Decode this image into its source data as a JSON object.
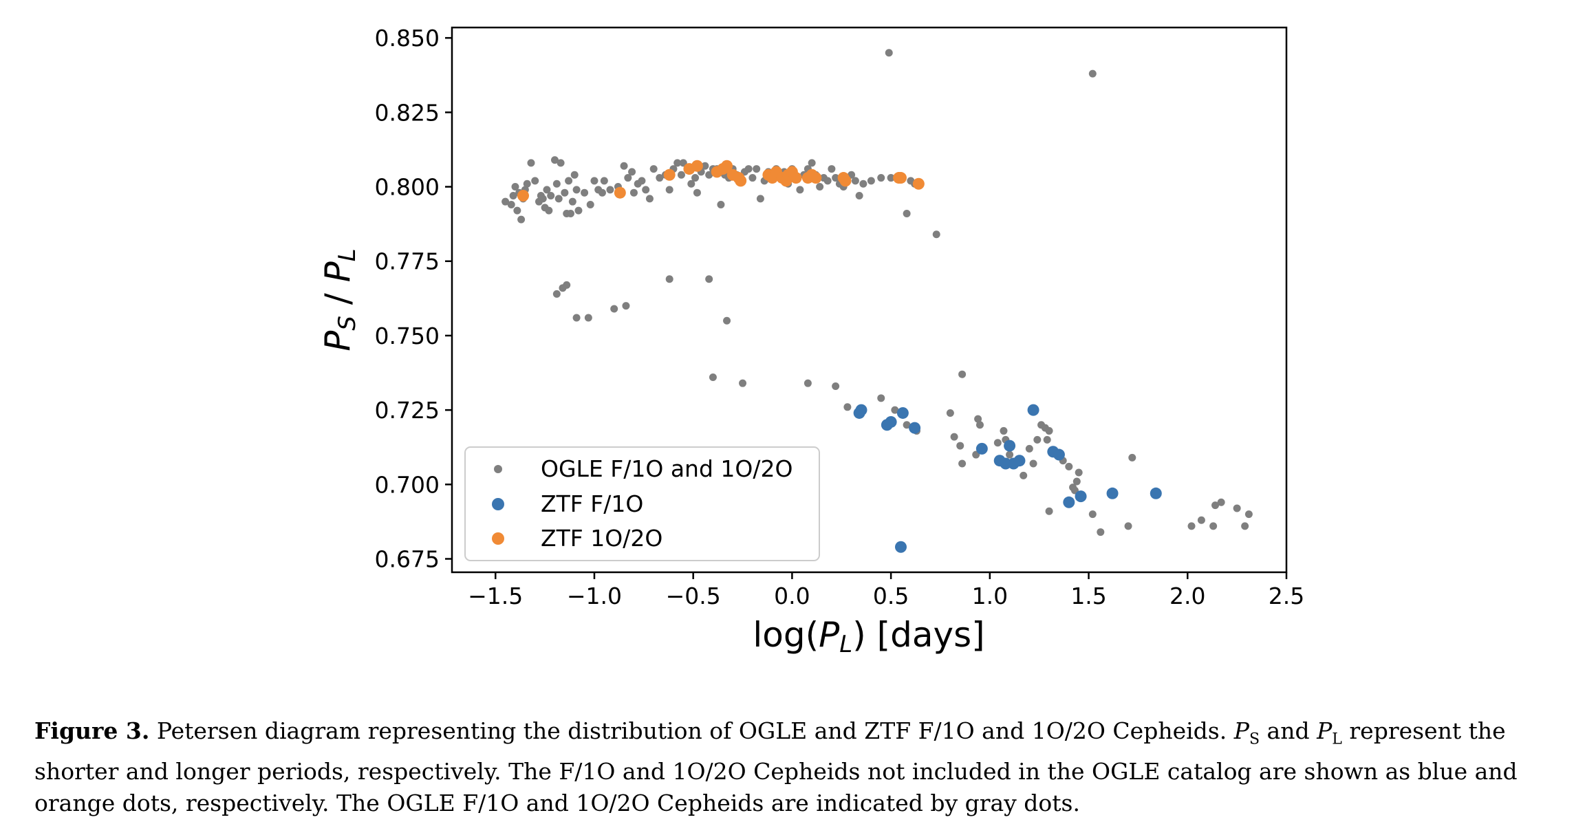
{
  "caption": {
    "label": "Figure 3.",
    "part1": "Petersen diagram representing the distribution of OGLE and ZTF F/1O and 1O/2O Cepheids.",
    "ps_symbol": "P",
    "ps_sub": "S",
    "and": "and",
    "pl_symbol": "P",
    "pl_sub": "L",
    "part2": "represent the shorter and longer periods, respectively. The F/1O and 1O/2O Cepheids not included in the OGLE catalog are shown as blue and orange dots, respectively. The OGLE F/1O and 1O/2O Cepheids are indicated by gray dots."
  },
  "chart_data": {
    "type": "scatter",
    "xlim": [
      -1.72,
      2.5
    ],
    "ylim": [
      0.6705,
      0.8535
    ],
    "xticks": [
      -1.5,
      -1.0,
      -0.5,
      0.0,
      0.5,
      1.0,
      1.5,
      2.0,
      2.5
    ],
    "xtick_labels": [
      "−1.5",
      "−1.0",
      "−0.5",
      "0.0",
      "0.5",
      "1.0",
      "1.5",
      "2.0",
      "2.5"
    ],
    "yticks": [
      0.675,
      0.7,
      0.725,
      0.75,
      0.775,
      0.8,
      0.825,
      0.85
    ],
    "ytick_labels": [
      "0.675",
      "0.700",
      "0.725",
      "0.750",
      "0.775",
      "0.800",
      "0.825",
      "0.850"
    ],
    "xlabel": {
      "pre": "log(",
      "sym": "P",
      "sub": "L",
      "post": ") [days]"
    },
    "ylabel": {
      "sym1": "P",
      "sub1": "S",
      "mid": " / ",
      "sym2": "P",
      "sub2": "L"
    },
    "legend_position": "lower left",
    "grid": false,
    "series": [
      {
        "name": "OGLE F/1O and 1O/2O",
        "color": "#7f7f7f",
        "marker": "small",
        "points": [
          [
            -1.45,
            0.795
          ],
          [
            -1.42,
            0.794
          ],
          [
            -1.41,
            0.797
          ],
          [
            -1.4,
            0.8
          ],
          [
            -1.39,
            0.792
          ],
          [
            -1.38,
            0.798
          ],
          [
            -1.37,
            0.789
          ],
          [
            -1.36,
            0.796
          ],
          [
            -1.35,
            0.799
          ],
          [
            -1.34,
            0.801
          ],
          [
            -1.32,
            0.808
          ],
          [
            -1.3,
            0.802
          ],
          [
            -1.28,
            0.795
          ],
          [
            -1.27,
            0.797
          ],
          [
            -1.26,
            0.796
          ],
          [
            -1.25,
            0.793
          ],
          [
            -1.24,
            0.799
          ],
          [
            -1.23,
            0.792
          ],
          [
            -1.22,
            0.797
          ],
          [
            -1.2,
            0.809
          ],
          [
            -1.19,
            0.801
          ],
          [
            -1.18,
            0.796
          ],
          [
            -1.17,
            0.808
          ],
          [
            -1.15,
            0.798
          ],
          [
            -1.14,
            0.791
          ],
          [
            -1.13,
            0.802
          ],
          [
            -1.12,
            0.791
          ],
          [
            -1.11,
            0.795
          ],
          [
            -1.1,
            0.804
          ],
          [
            -1.09,
            0.799
          ],
          [
            -1.08,
            0.792
          ],
          [
            -1.05,
            0.798
          ],
          [
            -1.02,
            0.794
          ],
          [
            -1.0,
            0.802
          ],
          [
            -0.98,
            0.799
          ],
          [
            -0.96,
            0.798
          ],
          [
            -0.95,
            0.802
          ],
          [
            -0.92,
            0.799
          ],
          [
            -0.88,
            0.8
          ],
          [
            -0.85,
            0.807
          ],
          [
            -0.83,
            0.803
          ],
          [
            -0.81,
            0.805
          ],
          [
            -0.8,
            0.798
          ],
          [
            -0.78,
            0.801
          ],
          [
            -0.76,
            0.802
          ],
          [
            -0.74,
            0.799
          ],
          [
            -0.72,
            0.796
          ],
          [
            -0.7,
            0.806
          ],
          [
            -0.67,
            0.803
          ],
          [
            -0.64,
            0.804
          ],
          [
            -0.62,
            0.799
          ],
          [
            -0.6,
            0.806
          ],
          [
            -0.58,
            0.808
          ],
          [
            -0.56,
            0.804
          ],
          [
            -0.55,
            0.808
          ],
          [
            -0.53,
            0.806
          ],
          [
            -0.51,
            0.801
          ],
          [
            -0.49,
            0.803
          ],
          [
            -0.48,
            0.798
          ],
          [
            -0.46,
            0.805
          ],
          [
            -0.44,
            0.807
          ],
          [
            -0.42,
            0.804
          ],
          [
            -0.4,
            0.806
          ],
          [
            -0.38,
            0.806
          ],
          [
            -0.36,
            0.794
          ],
          [
            -0.34,
            0.804
          ],
          [
            -0.32,
            0.803
          ],
          [
            -0.3,
            0.806
          ],
          [
            -0.28,
            0.804
          ],
          [
            -0.26,
            0.803
          ],
          [
            -0.24,
            0.805
          ],
          [
            -0.22,
            0.806
          ],
          [
            -0.2,
            0.803
          ],
          [
            -0.18,
            0.806
          ],
          [
            -0.16,
            0.796
          ],
          [
            -0.14,
            0.802
          ],
          [
            -0.12,
            0.805
          ],
          [
            -0.1,
            0.804
          ],
          [
            -0.08,
            0.806
          ],
          [
            -0.06,
            0.803
          ],
          [
            -0.04,
            0.805
          ],
          [
            -0.02,
            0.801
          ],
          [
            0.0,
            0.806
          ],
          [
            0.02,
            0.803
          ],
          [
            0.04,
            0.799
          ],
          [
            0.06,
            0.804
          ],
          [
            0.08,
            0.806
          ],
          [
            0.1,
            0.808
          ],
          [
            0.12,
            0.804
          ],
          [
            0.14,
            0.8
          ],
          [
            0.16,
            0.803
          ],
          [
            0.18,
            0.802
          ],
          [
            0.2,
            0.806
          ],
          [
            0.22,
            0.803
          ],
          [
            0.24,
            0.801
          ],
          [
            0.26,
            0.8
          ],
          [
            0.28,
            0.803
          ],
          [
            0.3,
            0.804
          ],
          [
            0.32,
            0.802
          ],
          [
            0.34,
            0.797
          ],
          [
            0.36,
            0.801
          ],
          [
            0.4,
            0.802
          ],
          [
            0.45,
            0.803
          ],
          [
            0.5,
            0.803
          ],
          [
            0.55,
            0.803
          ],
          [
            0.58,
            0.791
          ],
          [
            0.6,
            0.802
          ],
          [
            0.62,
            0.801
          ],
          [
            0.73,
            0.784
          ],
          [
            0.49,
            0.845
          ],
          [
            1.52,
            0.838
          ],
          [
            -1.19,
            0.764
          ],
          [
            -1.16,
            0.766
          ],
          [
            -1.14,
            0.767
          ],
          [
            -1.09,
            0.756
          ],
          [
            -1.03,
            0.756
          ],
          [
            -0.9,
            0.759
          ],
          [
            -0.84,
            0.76
          ],
          [
            -0.62,
            0.769
          ],
          [
            -0.42,
            0.769
          ],
          [
            -0.33,
            0.755
          ],
          [
            -0.4,
            0.736
          ],
          [
            -0.25,
            0.734
          ],
          [
            0.08,
            0.734
          ],
          [
            0.22,
            0.733
          ],
          [
            0.28,
            0.726
          ],
          [
            0.45,
            0.729
          ],
          [
            0.52,
            0.725
          ],
          [
            0.58,
            0.72
          ],
          [
            0.63,
            0.718
          ],
          [
            0.8,
            0.724
          ],
          [
            0.82,
            0.716
          ],
          [
            0.85,
            0.713
          ],
          [
            0.86,
            0.707
          ],
          [
            0.86,
            0.737
          ],
          [
            0.93,
            0.71
          ],
          [
            0.94,
            0.722
          ],
          [
            0.95,
            0.72
          ],
          [
            1.04,
            0.714
          ],
          [
            1.07,
            0.718
          ],
          [
            1.08,
            0.715
          ],
          [
            1.1,
            0.71
          ],
          [
            1.17,
            0.703
          ],
          [
            1.2,
            0.712
          ],
          [
            1.22,
            0.707
          ],
          [
            1.24,
            0.715
          ],
          [
            1.26,
            0.72
          ],
          [
            1.28,
            0.719
          ],
          [
            1.3,
            0.718
          ],
          [
            1.29,
            0.715
          ],
          [
            1.3,
            0.691
          ],
          [
            1.31,
            0.711
          ],
          [
            1.37,
            0.708
          ],
          [
            1.4,
            0.706
          ],
          [
            1.42,
            0.699
          ],
          [
            1.44,
            0.701
          ],
          [
            1.43,
            0.698
          ],
          [
            1.45,
            0.704
          ],
          [
            1.52,
            0.69
          ],
          [
            1.56,
            0.684
          ],
          [
            1.7,
            0.686
          ],
          [
            1.72,
            0.709
          ],
          [
            2.02,
            0.686
          ],
          [
            2.07,
            0.688
          ],
          [
            2.13,
            0.686
          ],
          [
            2.14,
            0.693
          ],
          [
            2.17,
            0.694
          ],
          [
            2.25,
            0.692
          ],
          [
            2.29,
            0.686
          ],
          [
            2.31,
            0.69
          ]
        ]
      },
      {
        "name": "ZTF F/1O",
        "color": "#3a75b0",
        "marker": "large",
        "points": [
          [
            0.34,
            0.724
          ],
          [
            0.35,
            0.725
          ],
          [
            0.48,
            0.72
          ],
          [
            0.5,
            0.721
          ],
          [
            0.56,
            0.724
          ],
          [
            0.62,
            0.719
          ],
          [
            0.55,
            0.679
          ],
          [
            0.96,
            0.712
          ],
          [
            1.05,
            0.708
          ],
          [
            1.08,
            0.707
          ],
          [
            1.1,
            0.713
          ],
          [
            1.12,
            0.707
          ],
          [
            1.15,
            0.708
          ],
          [
            1.22,
            0.725
          ],
          [
            1.32,
            0.711
          ],
          [
            1.35,
            0.71
          ],
          [
            1.4,
            0.694
          ],
          [
            1.46,
            0.696
          ],
          [
            1.62,
            0.697
          ],
          [
            1.84,
            0.697
          ]
        ]
      },
      {
        "name": "ZTF 1O/2O",
        "color": "#f08a35",
        "marker": "large",
        "points": [
          [
            -1.36,
            0.797
          ],
          [
            -0.87,
            0.798
          ],
          [
            -0.62,
            0.804
          ],
          [
            -0.52,
            0.806
          ],
          [
            -0.48,
            0.807
          ],
          [
            -0.38,
            0.805
          ],
          [
            -0.35,
            0.806
          ],
          [
            -0.33,
            0.807
          ],
          [
            -0.3,
            0.804
          ],
          [
            -0.27,
            0.803
          ],
          [
            -0.26,
            0.802
          ],
          [
            -0.12,
            0.804
          ],
          [
            -0.1,
            0.803
          ],
          [
            -0.08,
            0.805
          ],
          [
            -0.05,
            0.803
          ],
          [
            -0.03,
            0.802
          ],
          [
            -0.02,
            0.804
          ],
          [
            0.0,
            0.805
          ],
          [
            0.02,
            0.803
          ],
          [
            0.08,
            0.803
          ],
          [
            0.1,
            0.804
          ],
          [
            0.12,
            0.803
          ],
          [
            0.26,
            0.803
          ],
          [
            0.27,
            0.802
          ],
          [
            0.54,
            0.803
          ],
          [
            0.55,
            0.803
          ],
          [
            0.64,
            0.801
          ]
        ]
      }
    ]
  }
}
